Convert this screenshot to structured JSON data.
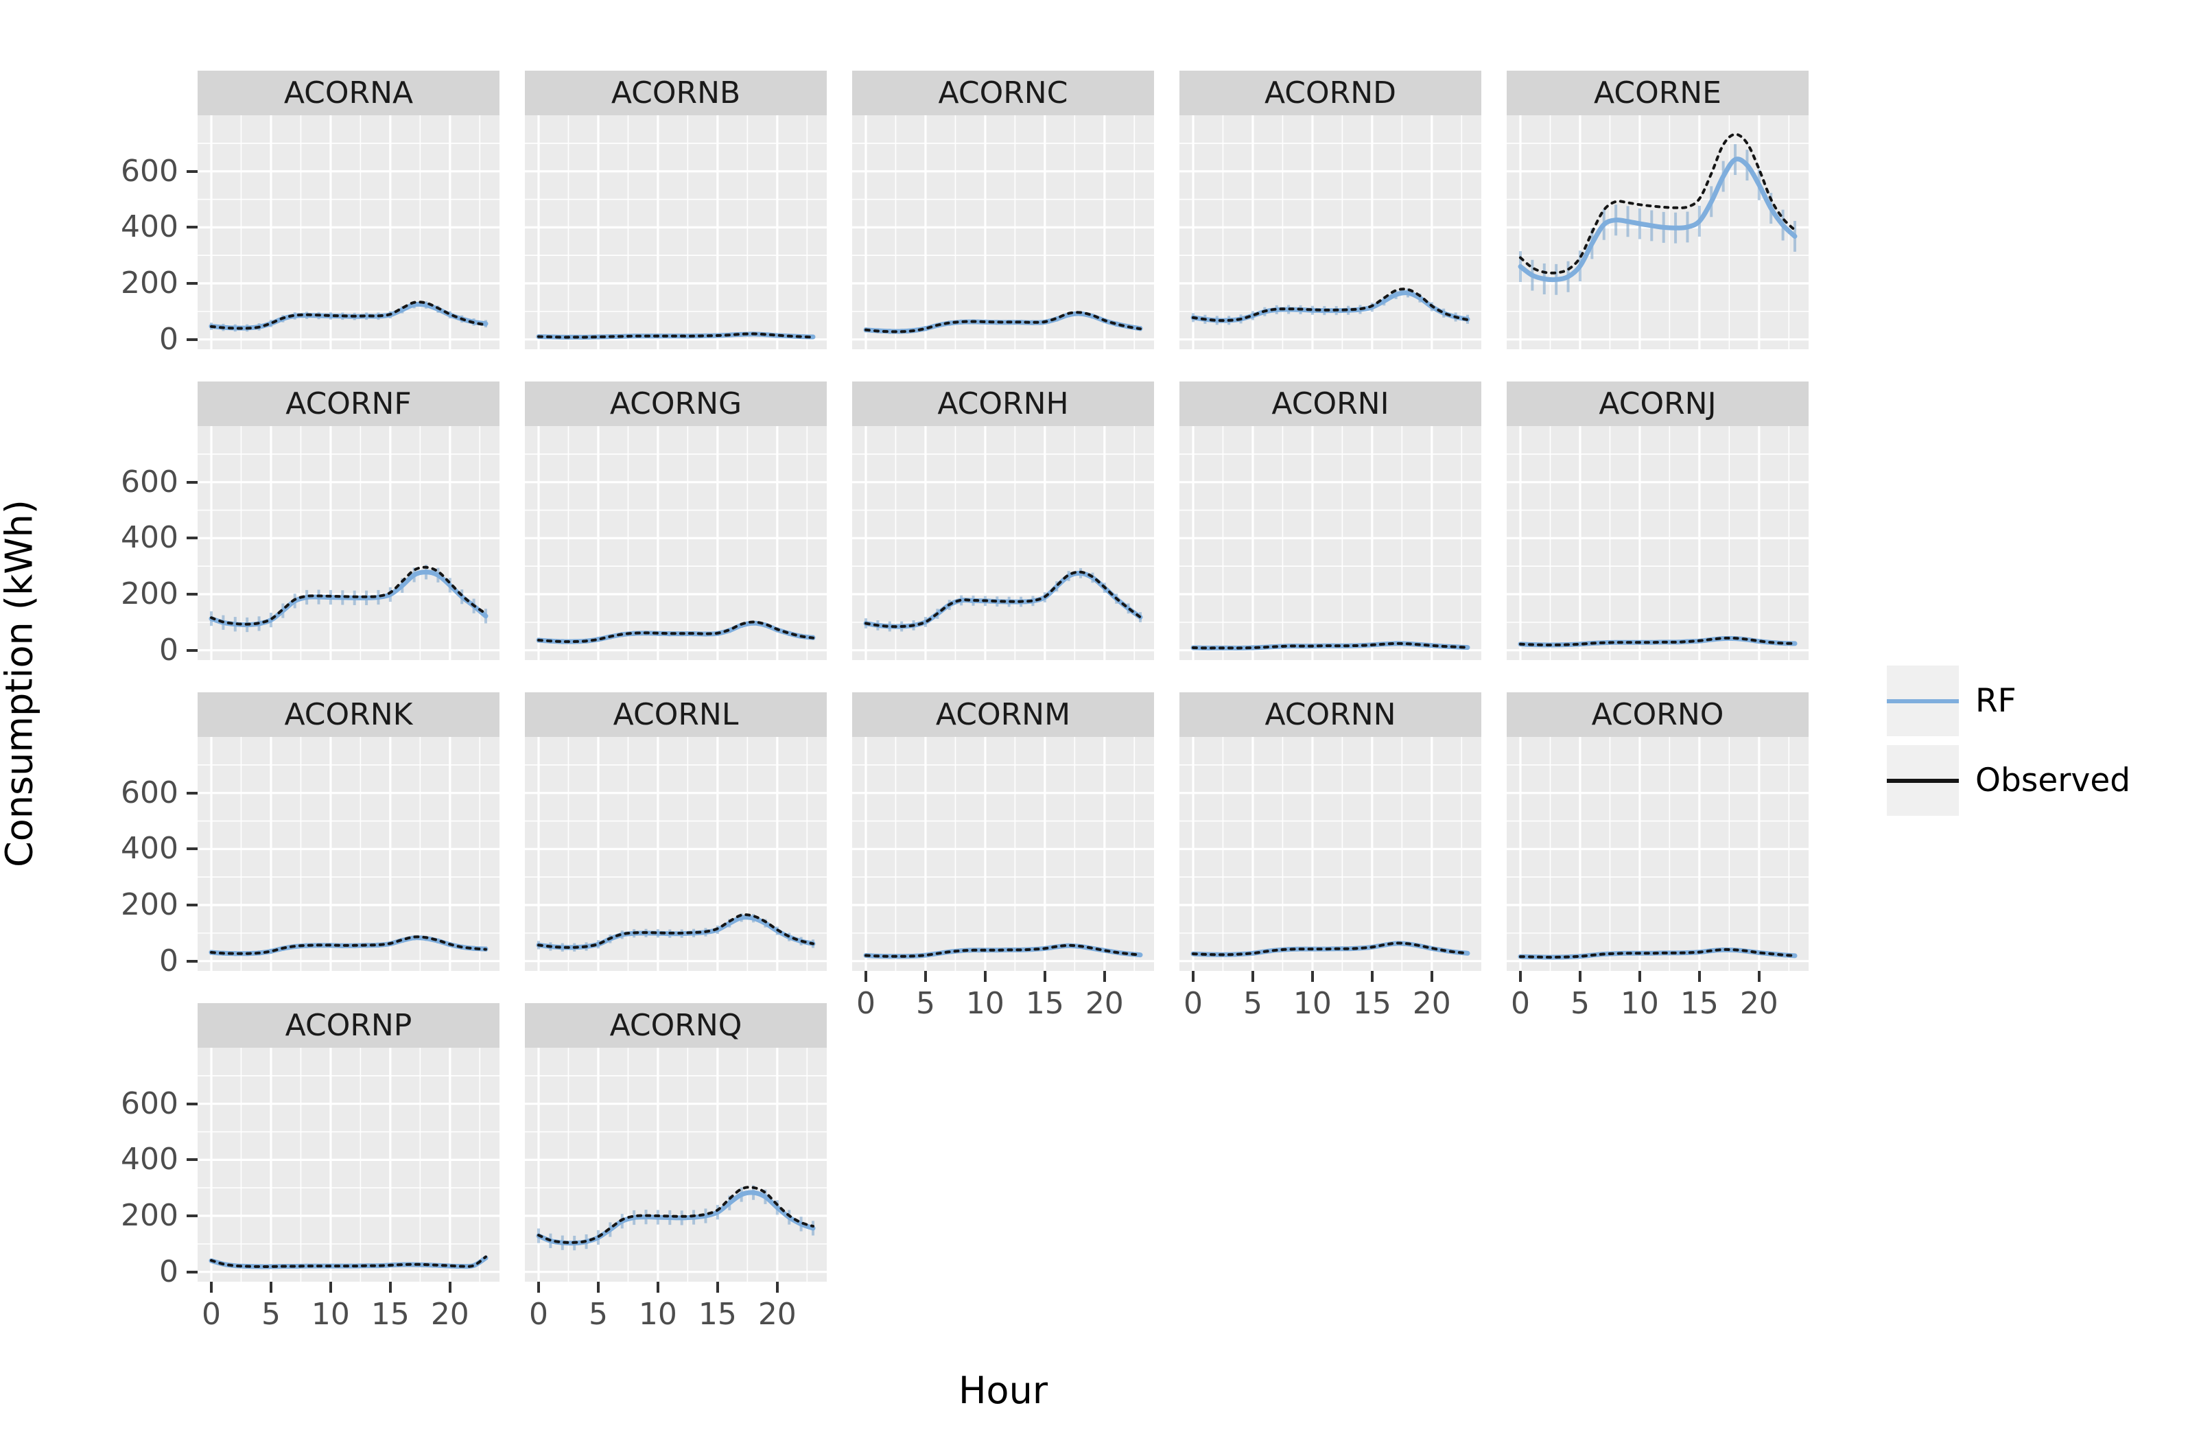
{
  "chart_data": {
    "type": "line",
    "xlabel": "Hour",
    "ylabel": "Consumption (kWh)",
    "x": [
      0,
      1,
      2,
      3,
      4,
      5,
      6,
      7,
      8,
      9,
      10,
      11,
      12,
      13,
      14,
      15,
      16,
      17,
      18,
      19,
      20,
      21,
      22,
      23
    ],
    "xticks": [
      0,
      5,
      10,
      15,
      20
    ],
    "yticks": [
      0,
      200,
      400,
      600
    ],
    "xlim": [
      -1.15,
      24.15
    ],
    "ylim": [
      -35,
      800
    ],
    "grid": "white major and minor gridlines on gray panels",
    "legend_position": "right",
    "legend": [
      {
        "label": "RF",
        "color": "#7FAEDD"
      },
      {
        "label": "Observed",
        "color": "#151515"
      }
    ],
    "colors": {
      "rf": "#7FAEDD",
      "rf_errorbar": "#7FA6CD",
      "observed": "#151515",
      "panel_bg": "#EBEBEB",
      "strip_bg": "#D5D5D5",
      "grid_major": "#FFFFFF",
      "grid_minor": "#FFFFFF",
      "legend_key_bg": "#F0F0F0",
      "tick_text": "#4D4D4D"
    },
    "facets": [
      {
        "title": "ACORNA",
        "observed": [
          46,
          42,
          40,
          40,
          44,
          58,
          76,
          86,
          88,
          87,
          85,
          84,
          83,
          84,
          84,
          90,
          112,
          132,
          130,
          112,
          90,
          73,
          60,
          52
        ],
        "rf": [
          47,
          43,
          41,
          41,
          45,
          57,
          74,
          84,
          86,
          85,
          84,
          83,
          82,
          83,
          83,
          88,
          106,
          124,
          123,
          108,
          88,
          73,
          62,
          56
        ],
        "err": 13
      },
      {
        "title": "ACORNB",
        "observed": [
          10,
          9,
          8,
          8,
          8,
          9,
          10,
          11,
          12,
          12,
          12,
          12,
          12,
          12,
          13,
          14,
          16,
          19,
          20,
          18,
          15,
          12,
          10,
          8
        ],
        "rf": [
          10,
          9,
          8,
          8,
          8,
          9,
          10,
          11,
          12,
          12,
          12,
          12,
          12,
          12,
          13,
          14,
          16,
          18,
          19,
          17,
          14,
          12,
          10,
          9
        ],
        "err": 5
      },
      {
        "title": "ACORNC",
        "observed": [
          34,
          30,
          28,
          28,
          31,
          39,
          51,
          59,
          63,
          64,
          63,
          62,
          62,
          62,
          61,
          63,
          76,
          93,
          96,
          86,
          68,
          55,
          45,
          38
        ],
        "rf": [
          34,
          31,
          29,
          29,
          32,
          39,
          50,
          58,
          62,
          63,
          62,
          61,
          61,
          61,
          60,
          62,
          73,
          88,
          92,
          83,
          67,
          55,
          46,
          39
        ],
        "err": 9
      },
      {
        "title": "ACORND",
        "observed": [
          78,
          72,
          68,
          68,
          73,
          86,
          101,
          108,
          109,
          108,
          106,
          105,
          105,
          106,
          109,
          120,
          148,
          175,
          178,
          156,
          120,
          95,
          80,
          70
        ],
        "rf": [
          78,
          72,
          68,
          68,
          73,
          85,
          99,
          106,
          107,
          106,
          104,
          103,
          103,
          104,
          107,
          115,
          137,
          160,
          166,
          148,
          117,
          94,
          80,
          72
        ],
        "err": 16
      },
      {
        "title": "ACORNE",
        "observed": [
          292,
          256,
          240,
          238,
          250,
          292,
          382,
          462,
          492,
          488,
          481,
          476,
          472,
          470,
          473,
          502,
          592,
          695,
          732,
          700,
          608,
          500,
          432,
          390
        ],
        "rf": [
          260,
          229,
          216,
          214,
          224,
          262,
          342,
          410,
          426,
          421,
          413,
          406,
          400,
          398,
          401,
          422,
          492,
          582,
          642,
          622,
          552,
          468,
          408,
          368
        ],
        "err": 55
      },
      {
        "title": "ACORNF",
        "observed": [
          116,
          101,
          95,
          93,
          97,
          111,
          146,
          181,
          193,
          194,
          193,
          192,
          191,
          191,
          193,
          206,
          246,
          286,
          296,
          281,
          240,
          196,
          160,
          131
        ],
        "rf": [
          113,
          99,
          93,
          91,
          95,
          108,
          141,
          176,
          189,
          190,
          189,
          188,
          187,
          187,
          189,
          199,
          231,
          269,
          279,
          268,
          232,
          191,
          158,
          122
        ],
        "err": 26
      },
      {
        "title": "ACORNG",
        "observed": [
          36,
          33,
          31,
          31,
          33,
          39,
          49,
          57,
          61,
          62,
          61,
          60,
          60,
          60,
          59,
          61,
          73,
          93,
          101,
          93,
          75,
          61,
          50,
          44
        ],
        "rf": [
          36,
          33,
          31,
          31,
          33,
          39,
          48,
          56,
          60,
          61,
          60,
          59,
          59,
          59,
          58,
          60,
          71,
          89,
          97,
          90,
          73,
          60,
          50,
          45
        ],
        "err": 9
      },
      {
        "title": "ACORNH",
        "observed": [
          96,
          89,
          85,
          85,
          89,
          101,
          131,
          163,
          179,
          178,
          177,
          175,
          174,
          174,
          177,
          191,
          231,
          269,
          279,
          262,
          225,
          185,
          150,
          118
        ],
        "rf": [
          96,
          89,
          85,
          85,
          89,
          101,
          130,
          162,
          178,
          177,
          176,
          174,
          173,
          173,
          176,
          189,
          228,
          265,
          275,
          259,
          223,
          184,
          149,
          118
        ],
        "err": 18
      },
      {
        "title": "ACORNI",
        "observed": [
          9,
          8,
          8,
          8,
          8,
          9,
          11,
          13,
          15,
          15,
          15,
          16,
          16,
          16,
          17,
          19,
          22,
          24,
          23,
          20,
          17,
          14,
          12,
          10
        ],
        "rf": [
          9,
          8,
          8,
          8,
          8,
          9,
          11,
          13,
          15,
          15,
          15,
          16,
          16,
          16,
          17,
          19,
          22,
          24,
          23,
          20,
          17,
          14,
          12,
          10
        ],
        "err": 4
      },
      {
        "title": "ACORNJ",
        "observed": [
          22,
          20,
          19,
          19,
          20,
          22,
          25,
          27,
          28,
          28,
          28,
          28,
          29,
          29,
          31,
          34,
          39,
          43,
          43,
          39,
          33,
          28,
          25,
          24
        ],
        "rf": [
          22,
          20,
          19,
          19,
          20,
          22,
          25,
          27,
          28,
          28,
          28,
          28,
          29,
          29,
          31,
          33,
          38,
          42,
          42,
          38,
          32,
          28,
          25,
          24
        ],
        "err": 6
      },
      {
        "title": "ACORNK",
        "observed": [
          31,
          28,
          27,
          27,
          29,
          35,
          46,
          53,
          56,
          57,
          57,
          56,
          56,
          57,
          58,
          63,
          76,
          86,
          84,
          74,
          60,
          50,
          45,
          42
        ],
        "rf": [
          31,
          28,
          27,
          27,
          29,
          35,
          45,
          52,
          55,
          56,
          56,
          55,
          55,
          56,
          57,
          62,
          74,
          83,
          81,
          72,
          59,
          50,
          45,
          43
        ],
        "err": 9
      },
      {
        "title": "ACORNL",
        "observed": [
          57,
          52,
          49,
          49,
          52,
          61,
          81,
          96,
          101,
          102,
          101,
          100,
          100,
          102,
          105,
          116,
          142,
          164,
          161,
          141,
          112,
          88,
          72,
          62
        ],
        "rf": [
          57,
          52,
          49,
          49,
          52,
          60,
          79,
          94,
          99,
          100,
          99,
          98,
          98,
          100,
          103,
          112,
          135,
          155,
          153,
          135,
          108,
          86,
          71,
          62
        ],
        "err": 15
      },
      {
        "title": "ACORNM",
        "observed": [
          20,
          18,
          17,
          17,
          18,
          21,
          27,
          33,
          37,
          39,
          39,
          39,
          40,
          40,
          42,
          45,
          52,
          56,
          53,
          46,
          38,
          31,
          26,
          22
        ],
        "rf": [
          20,
          18,
          17,
          17,
          18,
          21,
          27,
          33,
          37,
          39,
          39,
          39,
          40,
          40,
          42,
          45,
          51,
          55,
          52,
          45,
          38,
          31,
          26,
          22
        ],
        "err": 6
      },
      {
        "title": "ACORNN",
        "observed": [
          26,
          24,
          23,
          23,
          25,
          28,
          34,
          39,
          42,
          43,
          43,
          43,
          44,
          44,
          46,
          50,
          58,
          64,
          62,
          55,
          46,
          38,
          32,
          28
        ],
        "rf": [
          26,
          24,
          23,
          23,
          25,
          28,
          34,
          39,
          42,
          43,
          43,
          43,
          44,
          44,
          46,
          50,
          57,
          63,
          61,
          54,
          45,
          38,
          32,
          28
        ],
        "err": 7
      },
      {
        "title": "ACORNO",
        "observed": [
          16,
          15,
          14,
          14,
          15,
          17,
          21,
          25,
          27,
          28,
          28,
          28,
          29,
          29,
          30,
          32,
          37,
          41,
          40,
          36,
          30,
          26,
          22,
          19
        ],
        "rf": [
          16,
          15,
          14,
          14,
          15,
          17,
          21,
          25,
          27,
          28,
          28,
          28,
          29,
          29,
          30,
          32,
          37,
          40,
          39,
          35,
          30,
          26,
          22,
          19
        ],
        "err": 6
      },
      {
        "title": "ACORNP",
        "observed": [
          41,
          28,
          22,
          20,
          19,
          19,
          20,
          20,
          21,
          21,
          21,
          21,
          21,
          22,
          22,
          24,
          26,
          27,
          26,
          24,
          22,
          20,
          23,
          54
        ],
        "rf": [
          40,
          28,
          22,
          20,
          19,
          19,
          20,
          20,
          21,
          21,
          21,
          21,
          21,
          22,
          22,
          24,
          26,
          26,
          25,
          23,
          21,
          20,
          23,
          50
        ],
        "err": 7
      },
      {
        "title": "ACORNQ",
        "observed": [
          131,
          113,
          106,
          105,
          110,
          126,
          156,
          186,
          199,
          201,
          200,
          199,
          198,
          200,
          206,
          221,
          261,
          296,
          301,
          283,
          240,
          201,
          176,
          163
        ],
        "rf": [
          129,
          111,
          104,
          103,
          108,
          123,
          151,
          181,
          194,
          196,
          195,
          194,
          193,
          195,
          200,
          213,
          246,
          276,
          283,
          268,
          230,
          195,
          171,
          156
        ],
        "err": 26
      }
    ]
  }
}
